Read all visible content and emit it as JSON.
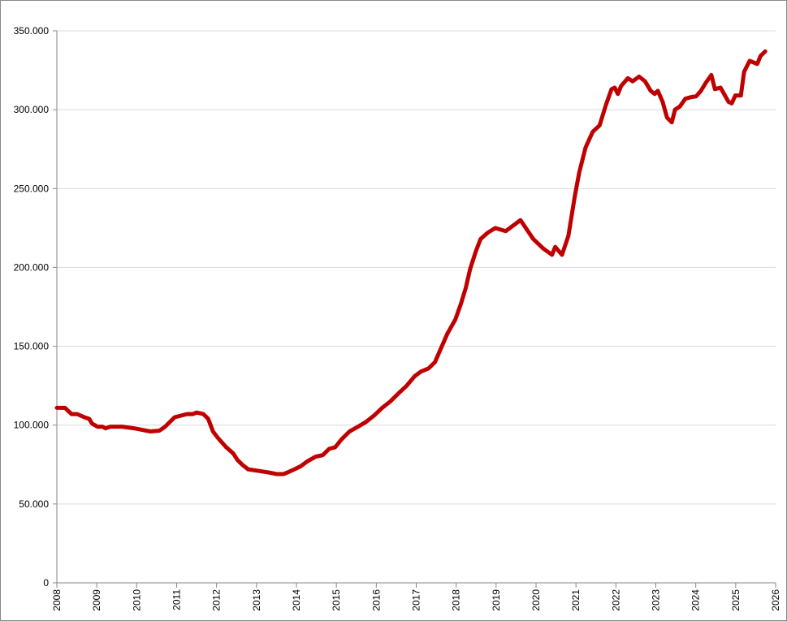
{
  "chart_data": {
    "type": "line",
    "x": [
      2008.0,
      2008.2,
      2008.37,
      2008.51,
      2008.69,
      2008.81,
      2008.88,
      2009.02,
      2009.14,
      2009.22,
      2009.34,
      2009.63,
      2009.93,
      2010.14,
      2010.34,
      2010.57,
      2010.71,
      2010.95,
      2011.26,
      2011.4,
      2011.5,
      2011.67,
      2011.79,
      2011.91,
      2012.03,
      2012.24,
      2012.42,
      2012.52,
      2012.64,
      2012.79,
      2013.05,
      2013.3,
      2013.5,
      2013.68,
      2013.82,
      2013.95,
      2014.11,
      2014.27,
      2014.48,
      2014.66,
      2014.82,
      2014.97,
      2015.13,
      2015.33,
      2015.54,
      2015.74,
      2015.94,
      2016.15,
      2016.35,
      2016.55,
      2016.76,
      2016.96,
      2017.12,
      2017.31,
      2017.47,
      2017.59,
      2017.78,
      2017.98,
      2018.12,
      2018.24,
      2018.35,
      2018.49,
      2018.61,
      2018.79,
      2018.98,
      2019.24,
      2019.61,
      2019.93,
      2020.18,
      2020.4,
      2020.48,
      2020.65,
      2020.81,
      2020.97,
      2021.08,
      2021.24,
      2021.42,
      2021.59,
      2021.75,
      2021.89,
      2021.97,
      2022.05,
      2022.13,
      2022.3,
      2022.42,
      2022.58,
      2022.73,
      2022.87,
      2022.97,
      2023.05,
      2023.17,
      2023.28,
      2023.4,
      2023.48,
      2023.6,
      2023.74,
      2023.89,
      2024.01,
      2024.13,
      2024.25,
      2024.39,
      2024.48,
      2024.62,
      2024.82,
      2024.9,
      2024.99,
      2025.13,
      2025.21,
      2025.35,
      2025.54,
      2025.62,
      2025.74
    ],
    "series": [
      {
        "color": "#c00000",
        "values": [
          111000,
          111000,
          107000,
          107000,
          105000,
          104000,
          101000,
          99000,
          99000,
          98000,
          99000,
          99000,
          98000,
          97000,
          96000,
          96500,
          99000,
          105000,
          107000,
          107000,
          108000,
          107000,
          104000,
          96000,
          92000,
          86000,
          82000,
          78000,
          75000,
          72000,
          71000,
          70000,
          69000,
          69000,
          70500,
          72000,
          74000,
          77000,
          80000,
          81000,
          85000,
          86000,
          91000,
          96000,
          99000,
          102000,
          106000,
          111000,
          115000,
          120000,
          125000,
          131000,
          134000,
          136000,
          140000,
          147000,
          158000,
          167000,
          177000,
          187000,
          199000,
          210000,
          218000,
          222000,
          225000,
          223000,
          230000,
          218000,
          212000,
          208000,
          213000,
          208000,
          220000,
          245000,
          260000,
          276000,
          286000,
          290000,
          303000,
          313000,
          314000,
          310000,
          315000,
          320000,
          318000,
          321000,
          318000,
          312000,
          310000,
          312000,
          305000,
          295000,
          292000,
          300000,
          302000,
          307000,
          308000,
          308500,
          312000,
          317000,
          322000,
          313000,
          314000,
          305000,
          304000,
          309000,
          309000,
          324000,
          331000,
          329000,
          334000,
          337000
        ]
      }
    ],
    "xlim": [
      2008,
      2026
    ],
    "xticks": [
      2008,
      2009,
      2010,
      2011,
      2012,
      2013,
      2014,
      2015,
      2016,
      2017,
      2018,
      2019,
      2020,
      2021,
      2022,
      2023,
      2024,
      2025,
      2026
    ],
    "ylim": [
      0,
      350000
    ],
    "yticks": [
      0,
      {
        "value": 50000,
        "label": "50.000"
      },
      {
        "value": 100000,
        "label": "100.000"
      },
      {
        "value": 150000,
        "label": "150.000"
      },
      {
        "value": 200000,
        "label": "200.000"
      },
      {
        "value": 250000,
        "label": "250.000"
      },
      {
        "value": 300000,
        "label": "300.000"
      },
      {
        "value": 350000,
        "label": "350.000"
      }
    ],
    "grid": true
  }
}
